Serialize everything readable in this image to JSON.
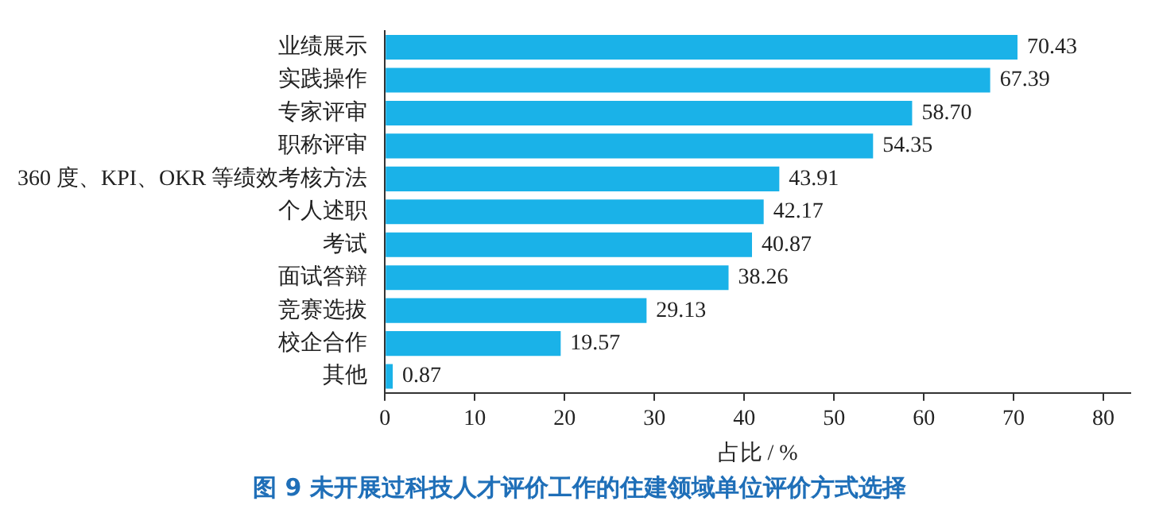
{
  "chart_data": {
    "type": "bar",
    "orientation": "horizontal",
    "title": "图 9  未开展过科技人才评价工作的住建领域单位评价方式选择",
    "xlabel": "占比 / %",
    "categories": [
      "业绩展示",
      "实践操作",
      "专家评审",
      "职称评审",
      "360 度、KPI、OKR 等绩效考核方法",
      "个人述职",
      "考试",
      "面试答辩",
      "竞赛选拔",
      "校企合作",
      "其他"
    ],
    "values": [
      70.43,
      67.39,
      58.7,
      54.35,
      43.91,
      42.17,
      40.87,
      38.26,
      29.13,
      19.57,
      0.87
    ],
    "value_labels": [
      "70.43",
      "67.39",
      "58.70",
      "54.35",
      "43.91",
      "42.17",
      "40.87",
      "38.26",
      "29.13",
      "19.57",
      "0.87"
    ],
    "color": "#1ab2e8",
    "xlim": [
      0,
      83
    ],
    "xticks": [
      0,
      10,
      20,
      30,
      40,
      50,
      60,
      70,
      80
    ],
    "grid": false,
    "legend": false
  }
}
